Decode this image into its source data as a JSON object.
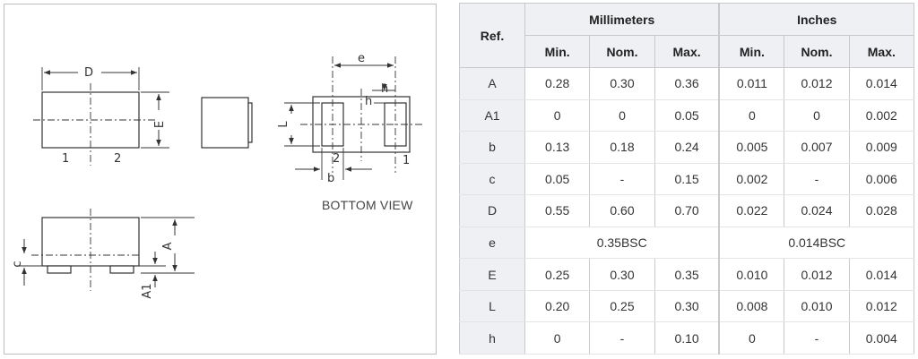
{
  "drawing": {
    "top_view": {
      "dim_D": "D",
      "dim_E": "E",
      "pin1": "1",
      "pin2": "2"
    },
    "bottom_view": {
      "dim_e": "e",
      "dim_L": "L",
      "dim_h": "h",
      "dim_b": "b",
      "pin2": "2",
      "pin1": "1",
      "label": "BOTTOM VIEW"
    },
    "side_view": {
      "dim_A": "A",
      "dim_c": "c",
      "dim_A1": "A1"
    }
  },
  "table": {
    "ref_header": "Ref.",
    "group_headers": [
      "Millimeters",
      "Inches"
    ],
    "sub_headers": [
      "Min.",
      "Nom.",
      "Max.",
      "Min.",
      "Nom.",
      "Max."
    ],
    "rows": [
      {
        "ref": "A",
        "mm": [
          "0.28",
          "0.30",
          "0.36"
        ],
        "inch": [
          "0.011",
          "0.012",
          "0.014"
        ]
      },
      {
        "ref": "A1",
        "mm": [
          "0",
          "0",
          "0.05"
        ],
        "inch": [
          "0",
          "0",
          "0.002"
        ]
      },
      {
        "ref": "b",
        "mm": [
          "0.13",
          "0.18",
          "0.24"
        ],
        "inch": [
          "0.005",
          "0.007",
          "0.009"
        ]
      },
      {
        "ref": "c",
        "mm": [
          "0.05",
          "-",
          "0.15"
        ],
        "inch": [
          "0.002",
          "-",
          "0.006"
        ]
      },
      {
        "ref": "D",
        "mm": [
          "0.55",
          "0.60",
          "0.70"
        ],
        "inch": [
          "0.022",
          "0.024",
          "0.028"
        ]
      },
      {
        "ref": "e",
        "mm_span": "0.35BSC",
        "inch_span": "0.014BSC"
      },
      {
        "ref": "E",
        "mm": [
          "0.25",
          "0.30",
          "0.35"
        ],
        "inch": [
          "0.010",
          "0.012",
          "0.014"
        ]
      },
      {
        "ref": "L",
        "mm": [
          "0.20",
          "0.25",
          "0.30"
        ],
        "inch": [
          "0.008",
          "0.010",
          "0.012"
        ]
      },
      {
        "ref": "h",
        "mm": [
          "0",
          "-",
          "0.10"
        ],
        "inch": [
          "0",
          "-",
          "0.004"
        ]
      }
    ]
  }
}
